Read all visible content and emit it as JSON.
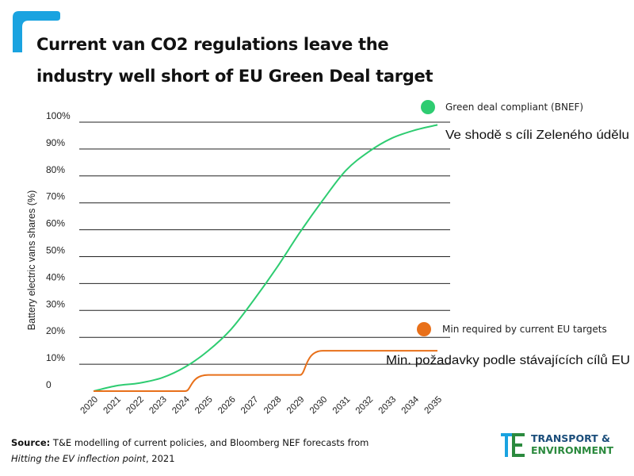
{
  "header": {
    "title_line1": "Current van CO2 regulations leave the",
    "title_line2": "industry well short of EU Green Deal target"
  },
  "chart_data": {
    "type": "line",
    "ylabel": "Battery electric vans shares (%)",
    "xlabel": "",
    "ylim": [
      0,
      100
    ],
    "y_ticks": [
      {
        "value": 0,
        "label": "0"
      },
      {
        "value": 10,
        "label": "10%"
      },
      {
        "value": 20,
        "label": "20%"
      },
      {
        "value": 30,
        "label": "30%"
      },
      {
        "value": 40,
        "label": "40%"
      },
      {
        "value": 50,
        "label": "50%"
      },
      {
        "value": 60,
        "label": "60%"
      },
      {
        "value": 70,
        "label": "70%"
      },
      {
        "value": 80,
        "label": "80%"
      },
      {
        "value": 90,
        "label": "90%"
      },
      {
        "value": 100,
        "label": "100%"
      }
    ],
    "x": [
      "2020",
      "2021",
      "2022",
      "2023",
      "2024",
      "2025",
      "2026",
      "2027",
      "2028",
      "2029",
      "2030",
      "2031",
      "2032",
      "2033",
      "2034",
      "2035"
    ],
    "grid": true,
    "series": [
      {
        "name": "Green deal compliant (BNEF)",
        "annotation": "Ve shodě s cíli Zeleného údělu",
        "color": "#2ecc71",
        "values": [
          0,
          2,
          3,
          5,
          9,
          15,
          23,
          34,
          46,
          59,
          71,
          82,
          89,
          94,
          97,
          99
        ]
      },
      {
        "name": "Min required by current EU targets",
        "annotation": "Min. požadavky podle stávajících cílů EU",
        "color": "#e8701a",
        "values": [
          0,
          0,
          0,
          0,
          0,
          6,
          6,
          6,
          6,
          6,
          15,
          15,
          15,
          15,
          15,
          15
        ]
      }
    ]
  },
  "footer": {
    "source_label": "Source:",
    "source_text": "T&E modelling of current policies, and Bloomberg NEF forecasts from",
    "source_italic": "Hitting the EV inflection point",
    "source_year": ", 2021"
  },
  "logo": {
    "line1": "TRANSPORT &",
    "line2": "ENVIRONMENT",
    "colors": {
      "blue": "#1aa3e0",
      "green": "#2b8a3e"
    }
  }
}
